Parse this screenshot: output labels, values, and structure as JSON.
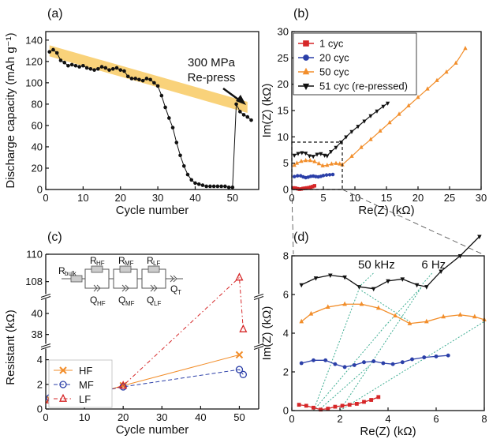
{
  "chart_data": [
    {
      "panel": "(a)",
      "type": "scatter",
      "xlabel": "Cycle number",
      "ylabel": "Discharge capacity (mAh g⁻¹)",
      "xlim": [
        0,
        57
      ],
      "ylim": [
        0,
        148
      ],
      "xticks": [
        "0",
        "10",
        "20",
        "30",
        "40",
        "50"
      ],
      "yticks": [
        "0",
        "20",
        "40",
        "60",
        "80",
        "100",
        "120",
        "140"
      ],
      "annotation": [
        "300 MPa",
        "Re-press"
      ],
      "band": {
        "color": "#f9d27a",
        "x": [
          1,
          54
        ],
        "y": [
          130,
          77
        ]
      },
      "series": [
        {
          "color": "#111111",
          "x": [
            1,
            2,
            3,
            4,
            5,
            6,
            7,
            8,
            9,
            10,
            11,
            12,
            13,
            14,
            15,
            16,
            17,
            18,
            19,
            20,
            21,
            22,
            23,
            24,
            25,
            26,
            27,
            28,
            29,
            30,
            31,
            32,
            33,
            34,
            35,
            36,
            37,
            38,
            39,
            40,
            41,
            42,
            43,
            44,
            45,
            46,
            47,
            48,
            49,
            50,
            51,
            52,
            53,
            54,
            55
          ],
          "y": [
            129,
            131,
            128,
            121,
            119,
            116,
            117,
            116,
            115,
            116,
            114,
            113,
            112,
            113,
            115,
            114,
            112,
            113,
            114,
            112,
            111,
            106,
            104,
            104,
            103,
            102,
            104,
            103,
            100,
            97,
            88,
            77,
            67,
            58,
            44,
            32,
            22,
            14,
            9,
            6,
            5,
            4,
            3,
            3,
            3,
            3,
            3,
            3,
            2,
            2,
            80,
            73,
            70,
            68,
            65
          ]
        }
      ]
    },
    {
      "panel": "(b)",
      "type": "scatter",
      "xlabel": "Re(Z) (kΩ)",
      "ylabel": "Im(Z) (kΩ)",
      "xlim": [
        0,
        30
      ],
      "ylim": [
        0,
        30
      ],
      "xticks": [
        "0",
        "5",
        "10",
        "15",
        "20",
        "25",
        "30"
      ],
      "yticks": [
        "0",
        "5",
        "10",
        "15",
        "20",
        "25",
        "30"
      ],
      "legend_placement": "top-left",
      "series": [
        {
          "name": "1 cyc",
          "color": "#d62728",
          "marker": "square",
          "x": [
            0.3,
            0.6,
            0.9,
            1.2,
            1.5,
            1.8,
            2.1,
            2.4,
            2.7,
            3.0,
            3.3,
            3.6
          ],
          "y": [
            0.3,
            0.25,
            0.15,
            0.05,
            0.1,
            0.2,
            0.25,
            0.3,
            0.35,
            0.45,
            0.55,
            0.7
          ]
        },
        {
          "name": "20 cyc",
          "color": "#2b3fa8",
          "marker": "circle",
          "x": [
            0.4,
            0.9,
            1.4,
            1.8,
            2.2,
            2.6,
            3.0,
            3.4,
            3.8,
            4.2,
            4.6,
            5.0,
            5.5,
            6.0,
            6.5
          ],
          "y": [
            2.45,
            2.6,
            2.6,
            2.4,
            2.25,
            2.35,
            2.5,
            2.55,
            2.45,
            2.4,
            2.5,
            2.65,
            2.75,
            2.8,
            2.85
          ]
        },
        {
          "name": "50 cyc",
          "color": "#f28e2b",
          "marker": "triangle",
          "x": [
            0.4,
            0.8,
            1.5,
            2.2,
            2.9,
            3.6,
            4.3,
            4.9,
            5.6,
            6.3,
            7.0,
            7.6,
            8.0,
            9.5,
            11,
            12.5,
            14,
            15.5,
            17,
            18.5,
            20,
            21.5,
            23,
            24.5,
            26,
            27.5
          ],
          "y": [
            4.6,
            5.0,
            5.35,
            5.5,
            5.5,
            5.3,
            4.9,
            4.5,
            4.6,
            4.85,
            4.95,
            4.85,
            4.7,
            6.3,
            8.0,
            9.5,
            11.1,
            12.7,
            14.3,
            15.9,
            17.5,
            19.1,
            20.7,
            22.3,
            24.0,
            26.8
          ]
        },
        {
          "name": "51 cyc (re-pressed)",
          "color": "#111111",
          "marker": "triangle-down",
          "x": [
            0.4,
            1.0,
            1.6,
            2.2,
            2.8,
            3.4,
            4.0,
            4.6,
            5.2,
            5.6,
            6.2,
            7.0,
            7.8,
            8.6,
            9.5,
            10.5,
            11.5,
            12.5,
            13.5,
            14.5,
            15.2
          ],
          "y": [
            6.5,
            6.85,
            7.0,
            6.9,
            6.4,
            6.3,
            6.7,
            6.8,
            6.5,
            6.4,
            7.2,
            8.0,
            9.0,
            10.0,
            11.0,
            12.0,
            13.0,
            14.0,
            14.9,
            15.8,
            16.4
          ]
        }
      ]
    },
    {
      "panel": "(c)",
      "type": "line",
      "xlabel": "Cycle number",
      "ylabel": "Resistant (kΩ)",
      "xlim": [
        0,
        55
      ],
      "ylim_lower": [
        0,
        5
      ],
      "ylim_middle": [
        37,
        41.5
      ],
      "ylim_upper": [
        107,
        110
      ],
      "xticks": [
        "0",
        "10",
        "20",
        "30",
        "40",
        "50"
      ],
      "yticks": [
        "0",
        "2",
        "4",
        "38",
        "40",
        "108",
        "110"
      ],
      "legend_placement": "bottom-left",
      "circuit_labels": {
        "r_bulk": "R",
        "r_bulk_sub": "bulk",
        "r_hf": "R",
        "r_hf_sub": "HF",
        "r_mf": "R",
        "r_mf_sub": "MF",
        "r_lf": "R",
        "r_lf_sub": "LF",
        "q_hf": "Q",
        "q_hf_sub": "HF",
        "q_mf": "Q",
        "q_mf_sub": "MF",
        "q_lf": "Q",
        "q_lf_sub": "LF",
        "q_t": "Q",
        "q_t_sub": "T"
      },
      "series": [
        {
          "name": "HF",
          "color": "#f28e2b",
          "marker": "x",
          "x": [
            1,
            5,
            10,
            20,
            50
          ],
          "y": [
            0.8,
            0.85,
            1.0,
            1.9,
            4.4
          ]
        },
        {
          "name": "MF",
          "color": "#2b3fa8",
          "marker": "circle",
          "x": [
            1,
            5,
            10,
            20,
            50,
            51
          ],
          "y": [
            0.9,
            0.95,
            1.2,
            1.8,
            3.2,
            2.8
          ]
        },
        {
          "name": "LF",
          "color": "#d62728",
          "marker": "triangle",
          "x": [
            1,
            5,
            10,
            20,
            50,
            51
          ],
          "y": [
            0.7,
            0.75,
            0.85,
            1.9,
            108.3,
            38.5
          ]
        }
      ]
    },
    {
      "panel": "(d)",
      "type": "scatter",
      "xlabel": "Re(Z) (kΩ)",
      "ylabel": "Im(Z) (kΩ)",
      "xlim": [
        0,
        8
      ],
      "ylim": [
        0,
        8
      ],
      "xticks": [
        "0",
        "2",
        "4",
        "6",
        "8"
      ],
      "yticks": [
        "0",
        "2",
        "4",
        "6",
        "8"
      ],
      "annotations": [
        "50 kHz",
        "6 Hz"
      ]
    }
  ]
}
